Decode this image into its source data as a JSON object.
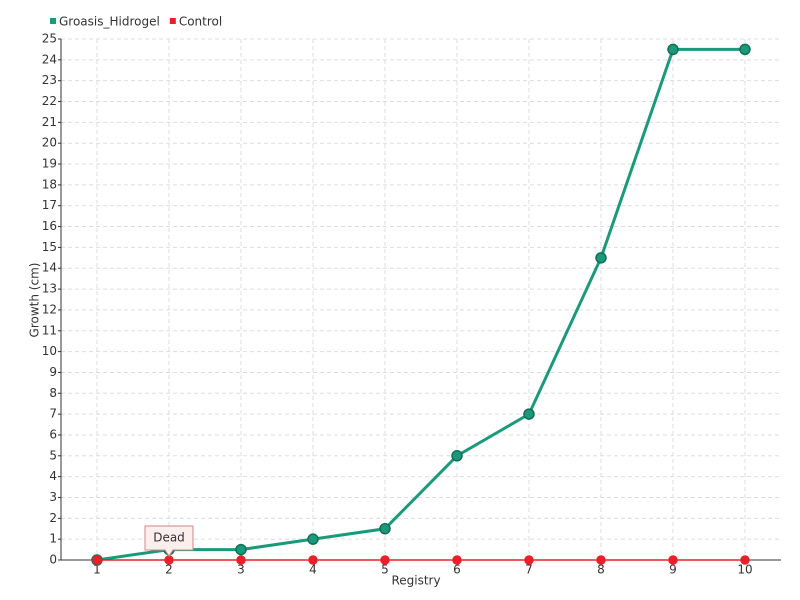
{
  "chart_data": {
    "type": "line",
    "x_label": "Registry",
    "y_label": "Growth (cm)",
    "categories": [
      "1",
      "2",
      "3",
      "4",
      "5",
      "6",
      "7",
      "8",
      "9",
      "10"
    ],
    "series": [
      {
        "name": "Groasis_Hidrogel",
        "color": "#1a9a7a",
        "values": [
          0,
          0.5,
          0.5,
          1,
          1.5,
          5,
          7,
          14.5,
          24.5,
          24.5
        ]
      },
      {
        "name": "Control",
        "color": "#e8202a",
        "values": [
          0,
          0,
          0,
          0,
          0,
          0,
          0,
          0,
          0,
          0
        ]
      }
    ],
    "annotation": "Dead",
    "ylim": [
      0,
      25
    ],
    "yticks": [
      0,
      1,
      2,
      3,
      4,
      5,
      6,
      7,
      8,
      9,
      10,
      11,
      12,
      13,
      14,
      15,
      16,
      17,
      18,
      19,
      20,
      21,
      22,
      23,
      24,
      25
    ],
    "grid": true,
    "legend": "top-left"
  }
}
